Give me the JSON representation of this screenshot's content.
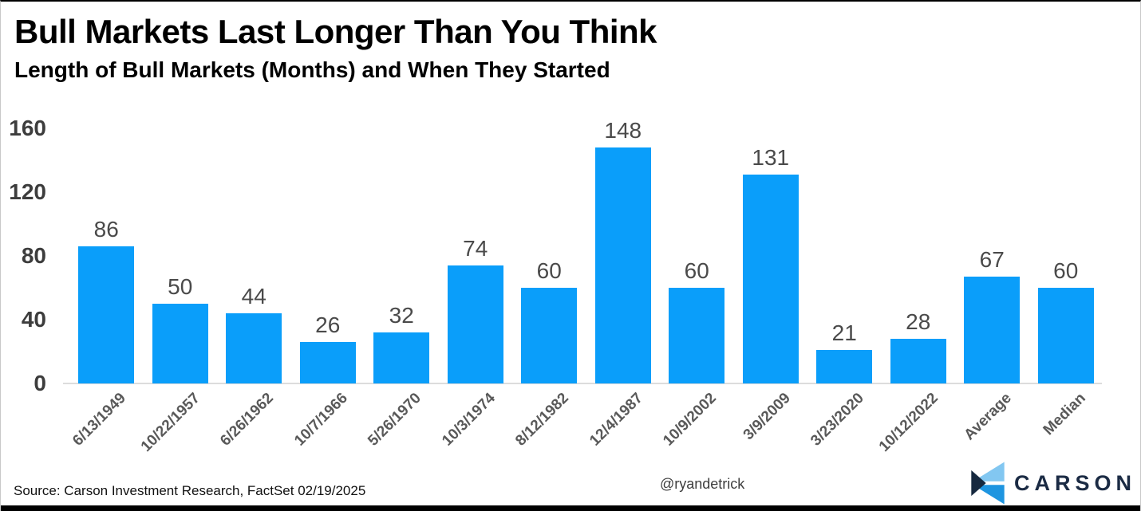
{
  "header": {
    "title": "Bull Markets Last Longer Than You Think",
    "subtitle": "Length of Bull Markets (Months) and When They Started"
  },
  "chart_data": {
    "type": "bar",
    "title": "Bull Markets Last Longer Than You Think",
    "subtitle": "Length of Bull Markets (Months) and When They Started",
    "categories": [
      "6/13/1949",
      "10/22/1957",
      "6/26/1962",
      "10/7/1966",
      "5/26/1970",
      "10/3/1974",
      "8/12/1982",
      "12/4/1987",
      "10/9/2002",
      "3/9/2009",
      "3/23/2020",
      "10/12/2022",
      "Average",
      "Median"
    ],
    "values": [
      86,
      50,
      44,
      26,
      32,
      74,
      60,
      148,
      60,
      131,
      21,
      28,
      67,
      60
    ],
    "xlabel": "",
    "ylabel": "",
    "ylim": [
      0,
      160
    ],
    "yticks": [
      0,
      40,
      80,
      120,
      160
    ],
    "grid": false,
    "legend": false,
    "data_labels": true,
    "bar_color": "#0A9EFA",
    "x_label_rotation_deg": -45
  },
  "footer": {
    "source": "Source: Carson Investment Research, FactSet 02/19/2025",
    "handle": "@ryandetrick",
    "logo_text": "CARSON"
  },
  "colors": {
    "bar": "#0A9EFA",
    "baseline": "#dcdcdc",
    "value_label": "#4a4a4a",
    "y_tick": "#3d3d3d",
    "x_label": "#595959",
    "logo_navy": "#1b2b44",
    "logo_light_blue": "#82C7F1",
    "logo_mid_blue": "#1E95E0",
    "logo_dark_navy": "#16293F"
  }
}
